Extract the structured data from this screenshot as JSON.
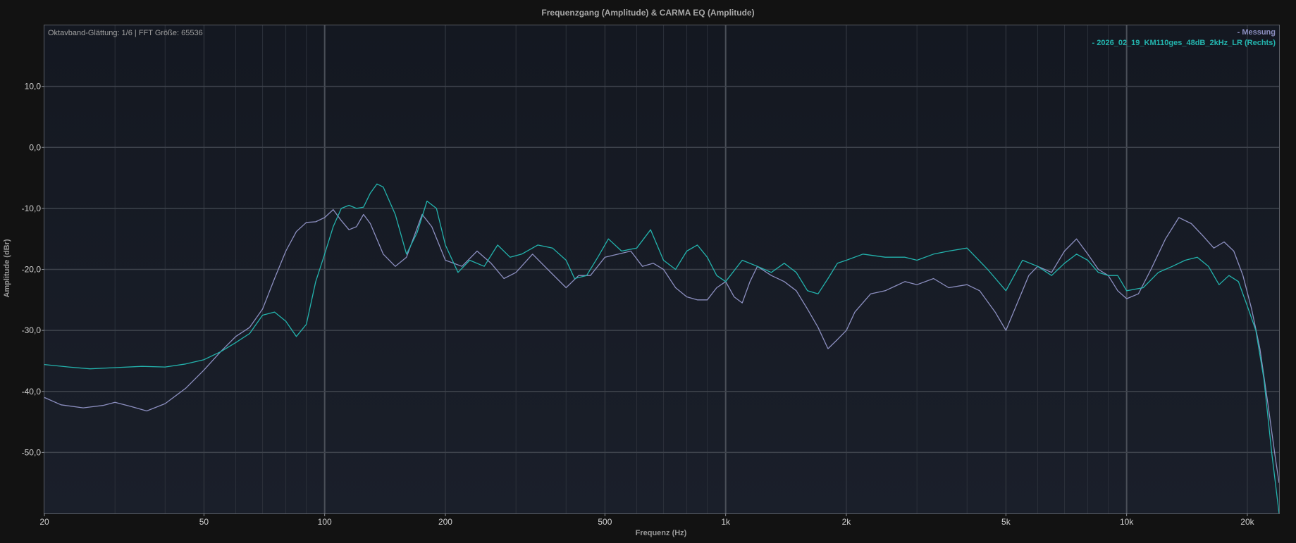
{
  "chart_data": {
    "type": "line",
    "title": "Frequenzgang (Amplitude) & CARMA EQ (Amplitude)",
    "xlabel": "Frequenz (Hz)",
    "ylabel": "Amplitude (dBr)",
    "info_text": "Oktavband-Glättung: 1/6 | FFT Größe: 65536",
    "x_scale": "log",
    "xlim": [
      20,
      24000
    ],
    "ylim": [
      -60,
      20
    ],
    "x_ticks": [
      {
        "value": 20,
        "label": "20"
      },
      {
        "value": 50,
        "label": "50"
      },
      {
        "value": 100,
        "label": "100"
      },
      {
        "value": 200,
        "label": "200"
      },
      {
        "value": 500,
        "label": "500"
      },
      {
        "value": 1000,
        "label": "1k"
      },
      {
        "value": 2000,
        "label": "2k"
      },
      {
        "value": 5000,
        "label": "5k"
      },
      {
        "value": 10000,
        "label": "10k"
      },
      {
        "value": 20000,
        "label": "20k"
      }
    ],
    "y_ticks": [
      {
        "value": 10,
        "label": "10,0"
      },
      {
        "value": 0,
        "label": "0,0"
      },
      {
        "value": -10,
        "label": "-10,0"
      },
      {
        "value": -20,
        "label": "-20,0"
      },
      {
        "value": -30,
        "label": "-30,0"
      },
      {
        "value": -40,
        "label": "-40,0"
      },
      {
        "value": -50,
        "label": "-50,0"
      }
    ],
    "grid": true,
    "legend_position": "top-right",
    "series": [
      {
        "name": "Messung",
        "legend_label": "- Messung",
        "color": "#8c8fc0",
        "points": [
          [
            20,
            -41.0
          ],
          [
            22,
            -42.2
          ],
          [
            25,
            -42.7
          ],
          [
            28,
            -42.3
          ],
          [
            30,
            -41.8
          ],
          [
            33,
            -42.5
          ],
          [
            36,
            -43.2
          ],
          [
            40,
            -42.0
          ],
          [
            45,
            -39.5
          ],
          [
            50,
            -36.5
          ],
          [
            55,
            -33.5
          ],
          [
            60,
            -31.0
          ],
          [
            65,
            -29.5
          ],
          [
            70,
            -26.5
          ],
          [
            75,
            -21.5
          ],
          [
            80,
            -17.0
          ],
          [
            85,
            -13.8
          ],
          [
            90,
            -12.3
          ],
          [
            95,
            -12.2
          ],
          [
            100,
            -11.5
          ],
          [
            105,
            -10.2
          ],
          [
            110,
            -12.0
          ],
          [
            115,
            -13.5
          ],
          [
            120,
            -13.0
          ],
          [
            125,
            -11.0
          ],
          [
            130,
            -12.5
          ],
          [
            140,
            -17.5
          ],
          [
            150,
            -19.5
          ],
          [
            160,
            -18.0
          ],
          [
            175,
            -11.0
          ],
          [
            185,
            -13.0
          ],
          [
            200,
            -18.5
          ],
          [
            220,
            -19.5
          ],
          [
            240,
            -17.0
          ],
          [
            260,
            -19.0
          ],
          [
            280,
            -21.5
          ],
          [
            300,
            -20.5
          ],
          [
            330,
            -17.5
          ],
          [
            360,
            -20.0
          ],
          [
            400,
            -23.0
          ],
          [
            430,
            -21.0
          ],
          [
            460,
            -21.0
          ],
          [
            500,
            -18.0
          ],
          [
            540,
            -17.5
          ],
          [
            580,
            -17.0
          ],
          [
            620,
            -19.5
          ],
          [
            660,
            -19.0
          ],
          [
            700,
            -20.0
          ],
          [
            750,
            -23.0
          ],
          [
            800,
            -24.5
          ],
          [
            850,
            -25.0
          ],
          [
            900,
            -25.0
          ],
          [
            950,
            -23.0
          ],
          [
            1000,
            -22.0
          ],
          [
            1050,
            -24.5
          ],
          [
            1100,
            -25.5
          ],
          [
            1150,
            -22.0
          ],
          [
            1200,
            -19.5
          ],
          [
            1300,
            -21.0
          ],
          [
            1400,
            -22.0
          ],
          [
            1500,
            -23.5
          ],
          [
            1600,
            -26.5
          ],
          [
            1700,
            -29.5
          ],
          [
            1800,
            -33.0
          ],
          [
            1900,
            -31.5
          ],
          [
            2000,
            -30.0
          ],
          [
            2100,
            -27.0
          ],
          [
            2300,
            -24.0
          ],
          [
            2500,
            -23.5
          ],
          [
            2800,
            -22.0
          ],
          [
            3000,
            -22.5
          ],
          [
            3300,
            -21.5
          ],
          [
            3600,
            -23.0
          ],
          [
            4000,
            -22.5
          ],
          [
            4300,
            -23.5
          ],
          [
            4700,
            -27.0
          ],
          [
            5000,
            -30.0
          ],
          [
            5300,
            -26.0
          ],
          [
            5700,
            -21.0
          ],
          [
            6000,
            -19.5
          ],
          [
            6500,
            -20.5
          ],
          [
            7000,
            -17.0
          ],
          [
            7500,
            -15.0
          ],
          [
            8000,
            -17.5
          ],
          [
            8500,
            -20.0
          ],
          [
            9000,
            -21.0
          ],
          [
            9500,
            -23.5
          ],
          [
            10000,
            -24.8
          ],
          [
            10700,
            -24.0
          ],
          [
            11500,
            -20.0
          ],
          [
            12500,
            -15.0
          ],
          [
            13500,
            -11.5
          ],
          [
            14500,
            -12.5
          ],
          [
            15500,
            -14.5
          ],
          [
            16500,
            -16.5
          ],
          [
            17500,
            -15.5
          ],
          [
            18500,
            -17.0
          ],
          [
            19500,
            -21.0
          ],
          [
            20500,
            -26.5
          ],
          [
            21500,
            -33.0
          ],
          [
            22500,
            -42.0
          ],
          [
            23500,
            -51.0
          ],
          [
            24000,
            -55.0
          ]
        ]
      },
      {
        "name": "2026_02_19_KM110ges_48dB_2kHz_LR (Rechts)",
        "legend_label": "- 2026_02_19_KM110ges_48dB_2kHz_LR (Rechts)",
        "color": "#23b3ad",
        "points": [
          [
            20,
            -35.6
          ],
          [
            23,
            -36.0
          ],
          [
            26,
            -36.3
          ],
          [
            30,
            -36.1
          ],
          [
            35,
            -35.9
          ],
          [
            40,
            -36.0
          ],
          [
            45,
            -35.5
          ],
          [
            50,
            -34.8
          ],
          [
            55,
            -33.5
          ],
          [
            60,
            -32.0
          ],
          [
            65,
            -30.5
          ],
          [
            70,
            -27.5
          ],
          [
            75,
            -27.0
          ],
          [
            80,
            -28.5
          ],
          [
            85,
            -31.0
          ],
          [
            90,
            -29.0
          ],
          [
            95,
            -22.0
          ],
          [
            100,
            -17.5
          ],
          [
            105,
            -13.0
          ],
          [
            110,
            -10.0
          ],
          [
            115,
            -9.5
          ],
          [
            120,
            -10.0
          ],
          [
            125,
            -9.8
          ],
          [
            130,
            -7.5
          ],
          [
            135,
            -6.0
          ],
          [
            140,
            -6.5
          ],
          [
            150,
            -11.0
          ],
          [
            160,
            -17.5
          ],
          [
            170,
            -14.0
          ],
          [
            180,
            -8.8
          ],
          [
            190,
            -10.0
          ],
          [
            200,
            -16.0
          ],
          [
            215,
            -20.5
          ],
          [
            230,
            -18.5
          ],
          [
            250,
            -19.5
          ],
          [
            270,
            -16.0
          ],
          [
            290,
            -18.0
          ],
          [
            310,
            -17.5
          ],
          [
            340,
            -16.0
          ],
          [
            370,
            -16.5
          ],
          [
            400,
            -18.5
          ],
          [
            420,
            -21.5
          ],
          [
            450,
            -21.0
          ],
          [
            480,
            -18.0
          ],
          [
            510,
            -15.0
          ],
          [
            550,
            -17.0
          ],
          [
            600,
            -16.5
          ],
          [
            650,
            -13.5
          ],
          [
            700,
            -18.5
          ],
          [
            750,
            -20.0
          ],
          [
            800,
            -17.0
          ],
          [
            850,
            -16.0
          ],
          [
            900,
            -18.0
          ],
          [
            950,
            -21.0
          ],
          [
            1000,
            -22.0
          ],
          [
            1100,
            -18.5
          ],
          [
            1200,
            -19.5
          ],
          [
            1300,
            -20.5
          ],
          [
            1400,
            -19.0
          ],
          [
            1500,
            -20.5
          ],
          [
            1600,
            -23.5
          ],
          [
            1700,
            -24.0
          ],
          [
            1800,
            -21.5
          ],
          [
            1900,
            -19.0
          ],
          [
            2000,
            -18.5
          ],
          [
            2200,
            -17.5
          ],
          [
            2500,
            -18.0
          ],
          [
            2800,
            -18.0
          ],
          [
            3000,
            -18.5
          ],
          [
            3300,
            -17.5
          ],
          [
            3600,
            -17.0
          ],
          [
            4000,
            -16.5
          ],
          [
            4500,
            -20.0
          ],
          [
            5000,
            -23.5
          ],
          [
            5500,
            -18.5
          ],
          [
            6000,
            -19.5
          ],
          [
            6500,
            -21.0
          ],
          [
            7000,
            -19.0
          ],
          [
            7500,
            -17.5
          ],
          [
            8000,
            -18.5
          ],
          [
            8500,
            -20.5
          ],
          [
            9000,
            -21.0
          ],
          [
            9500,
            -21.0
          ],
          [
            10000,
            -23.5
          ],
          [
            11000,
            -23.0
          ],
          [
            12000,
            -20.5
          ],
          [
            13000,
            -19.5
          ],
          [
            14000,
            -18.5
          ],
          [
            15000,
            -18.0
          ],
          [
            16000,
            -19.5
          ],
          [
            17000,
            -22.5
          ],
          [
            18000,
            -21.0
          ],
          [
            19000,
            -22.0
          ],
          [
            20000,
            -26.0
          ],
          [
            21000,
            -30.0
          ],
          [
            22000,
            -38.0
          ],
          [
            23000,
            -50.0
          ],
          [
            24000,
            -60.0
          ]
        ]
      }
    ]
  }
}
